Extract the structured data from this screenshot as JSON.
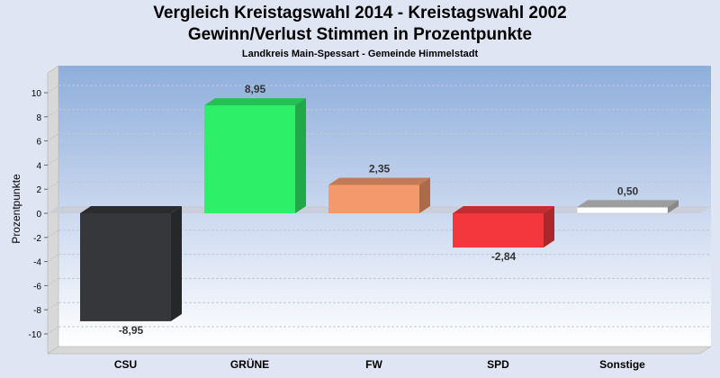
{
  "chart_data": {
    "type": "bar",
    "title": "Vergleich Kreistagswahl 2014 - Kreistagswahl 2002",
    "subtitle_main": "Gewinn/Verlust Stimmen in Prozentpunkte",
    "subtitle": "Landkreis Main-Spessart - Gemeinde Himmelstadt",
    "xlabel": "",
    "ylabel": "Prozentpunkte",
    "ylim": [
      -11.5,
      12
    ],
    "yticks": [
      10,
      8,
      6,
      4,
      2,
      0,
      -2,
      -4,
      -6,
      -8,
      -10
    ],
    "categories": [
      "CSU",
      "GRÜNE",
      "FW",
      "SPD",
      "Sonstige"
    ],
    "values": [
      -8.95,
      8.95,
      2.35,
      -2.84,
      0.5
    ],
    "labels": [
      "-8,95",
      "8,95",
      "2,35",
      "-2,84",
      "0,50"
    ],
    "colors": [
      "#35373b",
      "#2ef068",
      "#f4996b",
      "#f4373c",
      "#ffffff"
    ],
    "grid": true
  }
}
